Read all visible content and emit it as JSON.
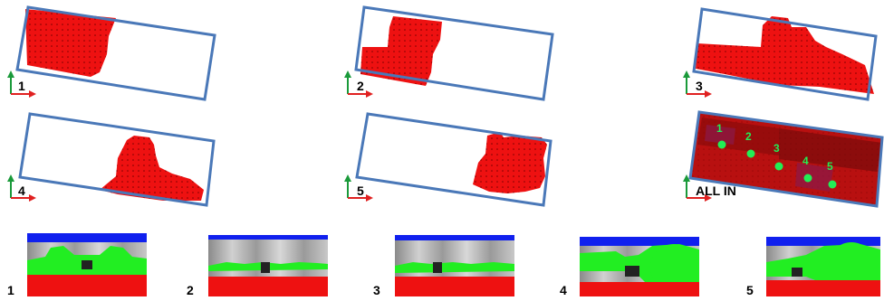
{
  "top_panels": [
    {
      "label": "1"
    },
    {
      "label": "2"
    },
    {
      "label": "3"
    },
    {
      "label": "4"
    },
    {
      "label": "5"
    },
    {
      "label": "ALL IN"
    }
  ],
  "all_in_markers": [
    "1",
    "2",
    "3",
    "4",
    "5"
  ],
  "bottom_panels": [
    {
      "label": "1"
    },
    {
      "label": "2"
    },
    {
      "label": "3"
    },
    {
      "label": "4"
    },
    {
      "label": "5"
    }
  ],
  "colors": {
    "room_outline": "#4a78b8",
    "occupancy_fill": "#ee1111",
    "axis_up": "#1a9a3a",
    "axis_right": "#e02020",
    "marker": "#22ee55",
    "pano_sky": "#1020ee",
    "pano_floor": "#ee1111",
    "pano_wall": "#22ee22"
  }
}
